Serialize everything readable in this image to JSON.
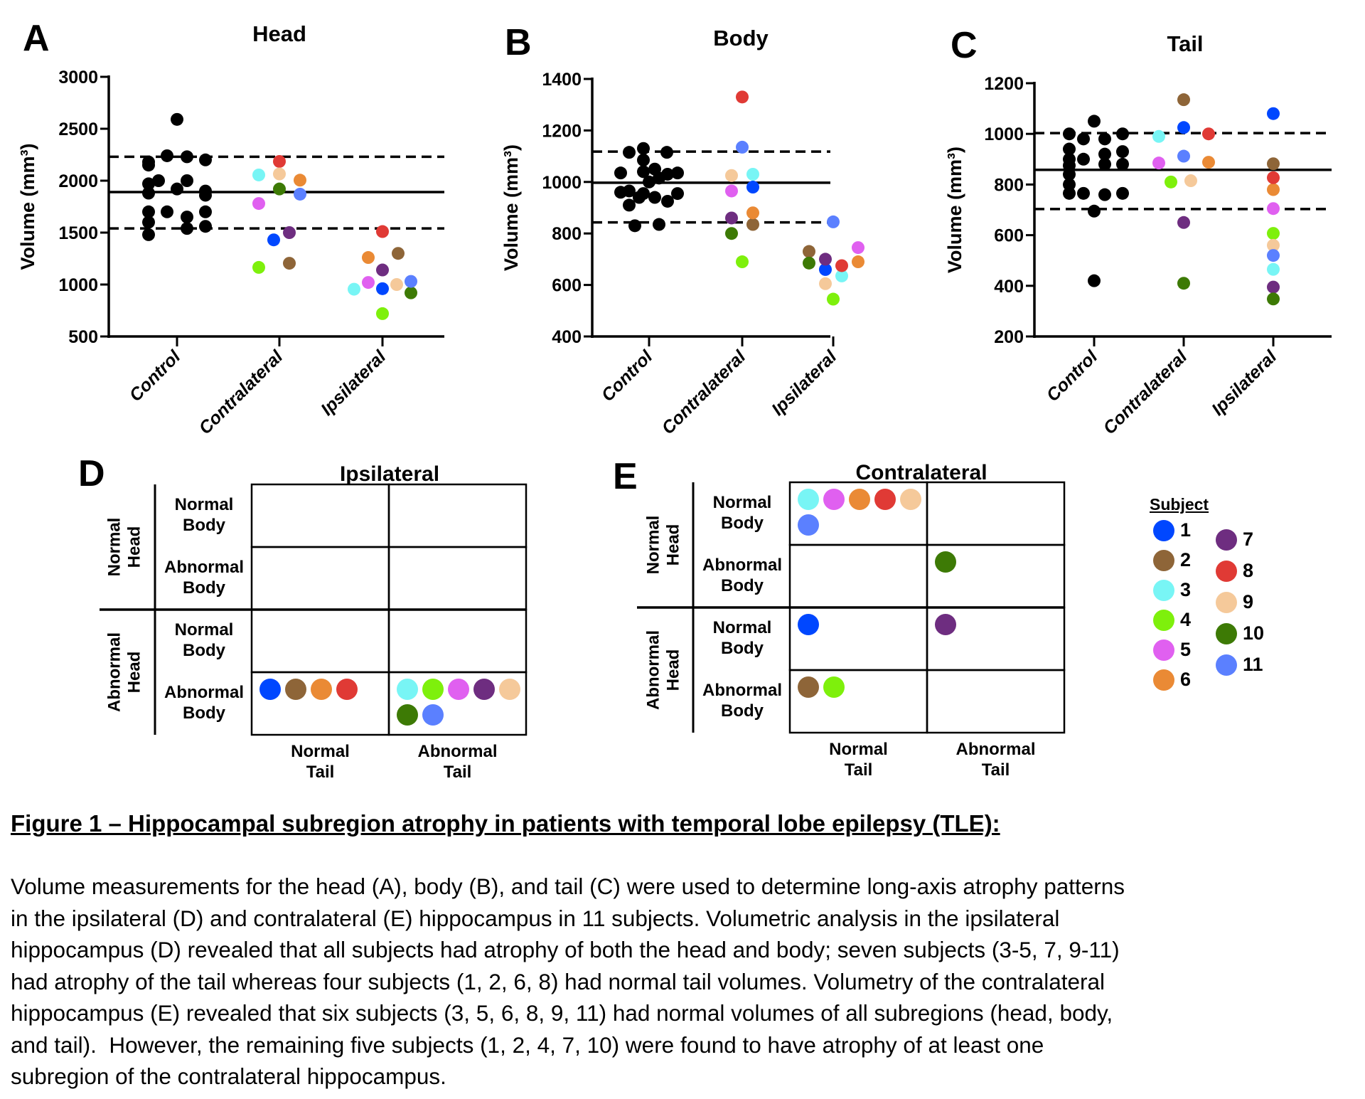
{
  "subjects": [
    {
      "id": "1",
      "color": "#0047ff"
    },
    {
      "id": "2",
      "color": "#8e6538"
    },
    {
      "id": "3",
      "color": "#78f5f5"
    },
    {
      "id": "4",
      "color": "#7ef00c"
    },
    {
      "id": "5",
      "color": "#e060f0"
    },
    {
      "id": "6",
      "color": "#ea8a35"
    },
    {
      "id": "7",
      "color": "#6e2d80"
    },
    {
      "id": "8",
      "color": "#e03a35"
    },
    {
      "id": "9",
      "color": "#f5c99a"
    },
    {
      "id": "10",
      "color": "#3d7a05"
    },
    {
      "id": "11",
      "color": "#5b80ff"
    }
  ],
  "chart_data": [
    {
      "panel": "A",
      "type": "scatter",
      "title": "Head",
      "xlabel": "",
      "ylabel": "Volume (mm³)",
      "ylim": [
        500,
        3000
      ],
      "yticks": [
        500,
        1000,
        1500,
        2000,
        2500,
        3000
      ],
      "categories": [
        "Control",
        "Contralateral",
        "Ipsilateral"
      ],
      "reference_lines": {
        "mean": 1890,
        "upper_dashed": 2230,
        "lower_dashed": 1540
      },
      "control_values": [
        2590,
        2240,
        2230,
        2180,
        2150,
        2200,
        2000,
        1970,
        2000,
        1900,
        1920,
        1880,
        1860,
        1700,
        1700,
        1700,
        1650,
        1600,
        1540,
        1560,
        1480
      ],
      "contralateral": {
        "1": 1430,
        "2": 1205,
        "3": 2055,
        "4": 1165,
        "5": 1780,
        "6": 2005,
        "7": 1500,
        "8": 2185,
        "9": 2065,
        "10": 1920,
        "11": 1870
      },
      "ipsilateral": {
        "1": 960,
        "2": 1300,
        "3": 955,
        "4": 720,
        "5": 1020,
        "6": 1260,
        "7": 1140,
        "8": 1510,
        "9": 1000,
        "10": 920,
        "11": 1030
      }
    },
    {
      "panel": "B",
      "type": "scatter",
      "title": "Body",
      "xlabel": "",
      "ylabel": "Volume (mm³)",
      "ylim": [
        400,
        1400
      ],
      "yticks": [
        400,
        600,
        800,
        1000,
        1200,
        1400
      ],
      "categories": [
        "Control",
        "Contralateral",
        "Ipsilateral"
      ],
      "reference_lines": {
        "mean": 997,
        "upper_dashed": 1118,
        "lower_dashed": 843
      },
      "control_values": [
        1130,
        1115,
        1115,
        1085,
        1050,
        1035,
        1035,
        1040,
        1030,
        1015,
        1000,
        960,
        965,
        955,
        940,
        925,
        940,
        955,
        910,
        830,
        835
      ],
      "contralateral": {
        "1": 980,
        "2": 835,
        "3": 1030,
        "4": 690,
        "5": 965,
        "6": 880,
        "7": 860,
        "8": 1330,
        "9": 1025,
        "10": 800,
        "11": 1135
      },
      "ipsilateral": {
        "1": 660,
        "2": 730,
        "3": 635,
        "4": 545,
        "5": 745,
        "6": 690,
        "7": 700,
        "8": 675,
        "9": 605,
        "10": 685,
        "11": 845
      }
    },
    {
      "panel": "C",
      "type": "scatter",
      "title": "Tail",
      "xlabel": "",
      "ylabel": "Volume (mm³)",
      "ylim": [
        200,
        1200
      ],
      "yticks": [
        200,
        400,
        600,
        800,
        1000,
        1200
      ],
      "categories": [
        "Control",
        "Contralateral",
        "Ipsilateral"
      ],
      "reference_lines": {
        "mean": 858,
        "upper_dashed": 1003,
        "lower_dashed": 703
      },
      "control_values": [
        1000,
        1050,
        1000,
        980,
        980,
        940,
        900,
        900,
        920,
        930,
        880,
        880,
        875,
        840,
        800,
        765,
        765,
        760,
        765,
        695,
        420
      ],
      "contralateral": {
        "1": 1025,
        "2": 1135,
        "3": 990,
        "4": 810,
        "5": 885,
        "6": 888,
        "7": 650,
        "8": 1000,
        "9": 815,
        "10": 410,
        "11": 912
      },
      "ipsilateral": {
        "1": 1080,
        "2": 882,
        "3": 465,
        "4": 607,
        "5": 705,
        "6": 780,
        "7": 395,
        "8": 827,
        "9": 560,
        "10": 348,
        "11": 520
      }
    }
  ],
  "panels": {
    "A": {
      "letter": "A",
      "title": "Head"
    },
    "B": {
      "letter": "B",
      "title": "Body"
    },
    "C": {
      "letter": "C",
      "title": "Tail"
    },
    "D": {
      "letter": "D",
      "title": "Ipsilateral"
    },
    "E": {
      "letter": "E",
      "title": "Contralateral"
    }
  },
  "grid_labels": {
    "normal_head": [
      "Normal",
      "Head"
    ],
    "abnormal_head": [
      "Abnormal",
      "Head"
    ],
    "normal_body": "Normal\nBody",
    "abnormal_body": "Abnormal\nBody",
    "normal_tail": "Normal\nTail",
    "abnormal_tail": "Abnormal\nTail"
  },
  "grids": {
    "D": {
      "cells": [
        [
          [],
          []
        ],
        [
          [],
          []
        ],
        [
          [],
          []
        ],
        [
          [
            "1",
            "2",
            "6",
            "8"
          ],
          [
            "3",
            "4",
            "5",
            "7",
            "9",
            "10",
            "11"
          ]
        ]
      ]
    },
    "E": {
      "cells": [
        [
          [
            "3",
            "5",
            "6",
            "8",
            "9",
            "11"
          ],
          []
        ],
        [
          [],
          [
            "10"
          ]
        ],
        [
          [
            "1"
          ],
          [
            "7"
          ]
        ],
        [
          [
            "2",
            "4"
          ],
          []
        ]
      ]
    }
  },
  "legend": {
    "title": "Subject",
    "column1": [
      "1",
      "2",
      "3",
      "4",
      "5",
      "6"
    ],
    "column2": [
      "7",
      "8",
      "9",
      "10",
      "11"
    ]
  },
  "caption": {
    "title": "Figure 1 – Hippocampal subregion atrophy in patients with temporal lobe epilepsy (TLE):",
    "lines": [
      "Volume measurements for the head (A), body (B), and tail (C) were used to determine long-axis atrophy patterns",
      "in the ipsilateral (D) and contralateral (E) hippocampus in 11 subjects. Volumetric analysis in the ipsilateral",
      "hippocampus (D) revealed that all subjects had atrophy of both the head and body; seven subjects (3-5, 7, 9-11)",
      "had atrophy of the tail whereas four subjects (1, 2, 6, 8) had normal tail volumes. Volumetry of the contralateral",
      "hippocampus (E) revealed that six subjects (3, 5, 6, 8, 9, 11) had normal volumes of all subregions (head, body,",
      "and tail).  However, the remaining five subjects (1, 2, 4, 7, 10) were found to have atrophy of at least one",
      "subregion of the contralateral hippocampus."
    ]
  }
}
